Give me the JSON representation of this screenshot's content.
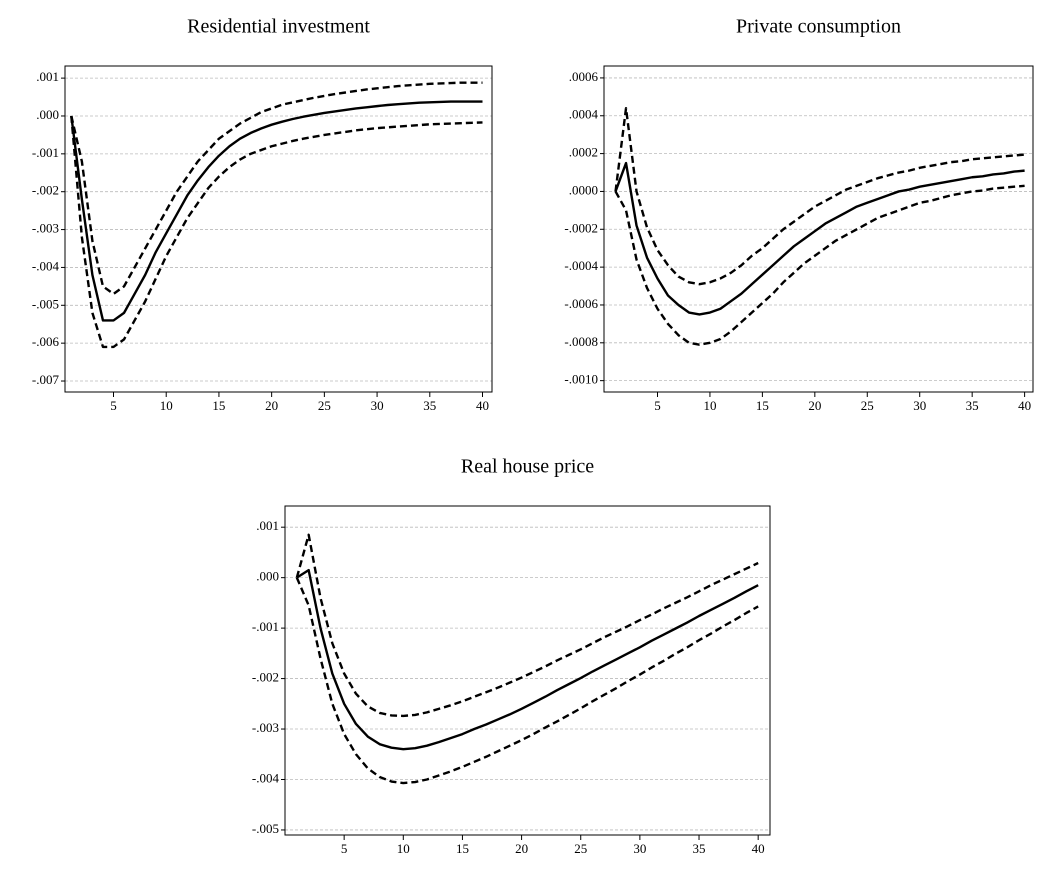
{
  "chart_data": [
    {
      "type": "line",
      "title": "Residential investment",
      "x": [
        1,
        2,
        3,
        4,
        5,
        6,
        7,
        8,
        9,
        10,
        11,
        12,
        13,
        14,
        15,
        16,
        17,
        18,
        19,
        20,
        21,
        22,
        23,
        24,
        25,
        26,
        27,
        28,
        29,
        30,
        31,
        32,
        33,
        34,
        35,
        36,
        37,
        38,
        39,
        40
      ],
      "series": [
        {
          "color": "#000000",
          "style": "solid",
          "values": [
            0,
            -0.0022,
            -0.0042,
            -0.0054,
            -0.0054,
            -0.0052,
            -0.0047,
            -0.0042,
            -0.0036,
            -0.0031,
            -0.0026,
            -0.0021,
            -0.0017,
            -0.00135,
            -0.00105,
            -0.0008,
            -0.0006,
            -0.00045,
            -0.00033,
            -0.00023,
            -0.00015,
            -8e-05,
            -2e-05,
            3e-05,
            8e-05,
            0.00012,
            0.00016,
            0.0002,
            0.00023,
            0.00026,
            0.00029,
            0.00031,
            0.00033,
            0.00035,
            0.00036,
            0.00037,
            0.00038,
            0.00038,
            0.00038,
            0.00038
          ]
        },
        {
          "color": "#000000",
          "style": "dashed",
          "values": [
            0,
            -0.0012,
            -0.0033,
            -0.0045,
            -0.0047,
            -0.0045,
            -0.004,
            -0.0035,
            -0.003,
            -0.0025,
            -0.002,
            -0.0016,
            -0.0012,
            -0.0009,
            -0.0006,
            -0.0004,
            -0.0002,
            -5e-05,
            0.0001,
            0.0002,
            0.0003,
            0.00036,
            0.00042,
            0.00048,
            0.00053,
            0.00058,
            0.00062,
            0.00066,
            0.0007,
            0.00073,
            0.00076,
            0.00079,
            0.00081,
            0.00083,
            0.00085,
            0.00086,
            0.00087,
            0.00088,
            0.00088,
            0.00088
          ]
        },
        {
          "color": "#000000",
          "style": "dashed",
          "values": [
            0,
            -0.0032,
            -0.0052,
            -0.0061,
            -0.0061,
            -0.0059,
            -0.0054,
            -0.0049,
            -0.0043,
            -0.0037,
            -0.0032,
            -0.0027,
            -0.0023,
            -0.0019,
            -0.0016,
            -0.00135,
            -0.00115,
            -0.001,
            -0.0009,
            -0.0008,
            -0.00073,
            -0.00066,
            -0.0006,
            -0.00055,
            -0.0005,
            -0.00046,
            -0.00042,
            -0.00038,
            -0.00035,
            -0.00032,
            -0.0003,
            -0.00028,
            -0.00026,
            -0.00024,
            -0.00022,
            -0.00021,
            -0.0002,
            -0.00019,
            -0.00018,
            -0.00017
          ]
        }
      ],
      "xlim": [
        0.4,
        40.9
      ],
      "xticks": [
        5,
        10,
        15,
        20,
        25,
        30,
        35,
        40
      ],
      "ylim": [
        -0.00729,
        0.00132
      ],
      "yticks": [
        {
          "value": 0.001,
          "label": ".001"
        },
        {
          "value": 0,
          "label": ".000"
        },
        {
          "value": -0.001,
          "label": "-.001"
        },
        {
          "value": -0.002,
          "label": "-.002"
        },
        {
          "value": -0.003,
          "label": "-.003"
        },
        {
          "value": -0.004,
          "label": "-.004"
        },
        {
          "value": -0.005,
          "label": "-.005"
        },
        {
          "value": -0.006,
          "label": "-.006"
        },
        {
          "value": -0.007,
          "label": "-.007"
        }
      ],
      "grid": true
    },
    {
      "type": "line",
      "title": "Private consumption",
      "x": [
        1,
        2,
        3,
        4,
        5,
        6,
        7,
        8,
        9,
        10,
        11,
        12,
        13,
        14,
        15,
        16,
        17,
        18,
        19,
        20,
        21,
        22,
        23,
        24,
        25,
        26,
        27,
        28,
        29,
        30,
        31,
        32,
        33,
        34,
        35,
        36,
        37,
        38,
        39,
        40
      ],
      "series": [
        {
          "color": "#000000",
          "style": "solid",
          "values": [
            0,
            0.00015,
            -0.00018,
            -0.00035,
            -0.00046,
            -0.00055,
            -0.0006,
            -0.00064,
            -0.00065,
            -0.00064,
            -0.00062,
            -0.00058,
            -0.00054,
            -0.00049,
            -0.00044,
            -0.00039,
            -0.00034,
            -0.00029,
            -0.00025,
            -0.00021,
            -0.00017,
            -0.00014,
            -0.00011,
            -8e-05,
            -6e-05,
            -4e-05,
            -2e-05,
            0,
            1e-05,
            2.5e-05,
            3.5e-05,
            4.5e-05,
            5.5e-05,
            6.5e-05,
            7.5e-05,
            8e-05,
            9e-05,
            9.5e-05,
            0.000105,
            0.00011
          ]
        },
        {
          "color": "#000000",
          "style": "dashed",
          "values": [
            0,
            0.00044,
            0,
            -0.00019,
            -0.00031,
            -0.00039,
            -0.00045,
            -0.00048,
            -0.00049,
            -0.00048,
            -0.00046,
            -0.00043,
            -0.00039,
            -0.00034,
            -0.0003,
            -0.00025,
            -0.0002,
            -0.00016,
            -0.00012,
            -8e-05,
            -5e-05,
            -2e-05,
            1e-05,
            3e-05,
            5e-05,
            7e-05,
            8.5e-05,
            0.0001,
            0.00011,
            0.000125,
            0.000135,
            0.000145,
            0.000155,
            0.00016,
            0.00017,
            0.000175,
            0.00018,
            0.000185,
            0.00019,
            0.000195
          ]
        },
        {
          "color": "#000000",
          "style": "dashed",
          "values": [
            0,
            -0.0001,
            -0.00036,
            -0.00051,
            -0.00062,
            -0.0007,
            -0.00076,
            -0.0008,
            -0.00081,
            -0.0008,
            -0.00078,
            -0.00074,
            -0.00069,
            -0.00064,
            -0.00059,
            -0.00054,
            -0.00048,
            -0.00043,
            -0.00038,
            -0.00034,
            -0.0003,
            -0.00026,
            -0.00023,
            -0.0002,
            -0.00017,
            -0.00014,
            -0.00012,
            -0.0001,
            -8e-05,
            -6e-05,
            -5e-05,
            -3.5e-05,
            -2e-05,
            -1e-05,
            0,
            5e-06,
            1.5e-05,
            2e-05,
            2.5e-05,
            3e-05
          ]
        }
      ],
      "xlim": [
        -0.1,
        40.8
      ],
      "xticks": [
        5,
        10,
        15,
        20,
        25,
        30,
        35,
        40
      ],
      "ylim": [
        -0.00106,
        0.000663
      ],
      "yticks": [
        {
          "value": 0.0006,
          "label": ".0006"
        },
        {
          "value": 0.0004,
          "label": ".0004"
        },
        {
          "value": 0.0002,
          "label": ".0002"
        },
        {
          "value": 0,
          "label": ".0000"
        },
        {
          "value": -0.0002,
          "label": "-.0002"
        },
        {
          "value": -0.0004,
          "label": "-.0004"
        },
        {
          "value": -0.0006,
          "label": "-.0006"
        },
        {
          "value": -0.0008,
          "label": "-.0008"
        },
        {
          "value": -0.001,
          "label": "-.0010"
        }
      ],
      "grid": true
    },
    {
      "type": "line",
      "title": "Real house price",
      "x": [
        1,
        2,
        3,
        4,
        5,
        6,
        7,
        8,
        9,
        10,
        11,
        12,
        13,
        14,
        15,
        16,
        17,
        18,
        19,
        20,
        21,
        22,
        23,
        24,
        25,
        26,
        27,
        28,
        29,
        30,
        31,
        32,
        33,
        34,
        35,
        36,
        37,
        38,
        39,
        40
      ],
      "series": [
        {
          "color": "#000000",
          "style": "solid",
          "values": [
            0,
            0.00015,
            -0.001,
            -0.0019,
            -0.0025,
            -0.0029,
            -0.00315,
            -0.0033,
            -0.00337,
            -0.0034,
            -0.00338,
            -0.00333,
            -0.00326,
            -0.00318,
            -0.0031,
            -0.003,
            -0.00291,
            -0.00281,
            -0.00271,
            -0.0026,
            -0.00248,
            -0.00236,
            -0.00223,
            -0.00211,
            -0.00199,
            -0.00186,
            -0.00174,
            -0.00162,
            -0.0015,
            -0.00138,
            -0.00125,
            -0.00113,
            -0.00101,
            -0.00089,
            -0.00076,
            -0.00064,
            -0.00052,
            -0.0004,
            -0.00027,
            -0.00015
          ]
        },
        {
          "color": "#000000",
          "style": "dashed",
          "values": [
            0,
            0.00085,
            -0.0004,
            -0.0013,
            -0.0019,
            -0.0023,
            -0.00255,
            -0.00268,
            -0.00273,
            -0.00274,
            -0.00272,
            -0.00267,
            -0.0026,
            -0.00253,
            -0.00245,
            -0.00236,
            -0.00227,
            -0.00218,
            -0.00208,
            -0.00198,
            -0.00187,
            -0.00176,
            -0.00164,
            -0.00153,
            -0.00142,
            -0.0013,
            -0.00118,
            -0.00107,
            -0.00096,
            -0.00084,
            -0.00073,
            -0.00061,
            -0.0005,
            -0.00039,
            -0.00027,
            -0.00015,
            -4e-05,
            7e-05,
            0.00018,
            0.00029
          ]
        },
        {
          "color": "#000000",
          "style": "dashed",
          "values": [
            0,
            -0.00055,
            -0.0016,
            -0.0025,
            -0.0031,
            -0.0035,
            -0.00378,
            -0.00395,
            -0.00404,
            -0.00407,
            -0.00405,
            -0.004,
            -0.00392,
            -0.00384,
            -0.00375,
            -0.00365,
            -0.00355,
            -0.00344,
            -0.00333,
            -0.00322,
            -0.0031,
            -0.00297,
            -0.00285,
            -0.00272,
            -0.00259,
            -0.00245,
            -0.00232,
            -0.00219,
            -0.00205,
            -0.00192,
            -0.00178,
            -0.00165,
            -0.00151,
            -0.00138,
            -0.00124,
            -0.00111,
            -0.00097,
            -0.00084,
            -0.0007,
            -0.00057
          ]
        }
      ],
      "xlim": [
        0,
        41
      ],
      "xticks": [
        5,
        10,
        15,
        20,
        25,
        30,
        35,
        40
      ],
      "ylim": [
        -0.0051,
        0.00142
      ],
      "yticks": [
        {
          "value": 0.001,
          "label": ".001"
        },
        {
          "value": 0,
          "label": ".000"
        },
        {
          "value": -0.001,
          "label": "-.001"
        },
        {
          "value": -0.002,
          "label": "-.002"
        },
        {
          "value": -0.003,
          "label": "-.003"
        },
        {
          "value": -0.004,
          "label": "-.004"
        },
        {
          "value": -0.005,
          "label": "-.005"
        }
      ],
      "grid": true
    }
  ]
}
